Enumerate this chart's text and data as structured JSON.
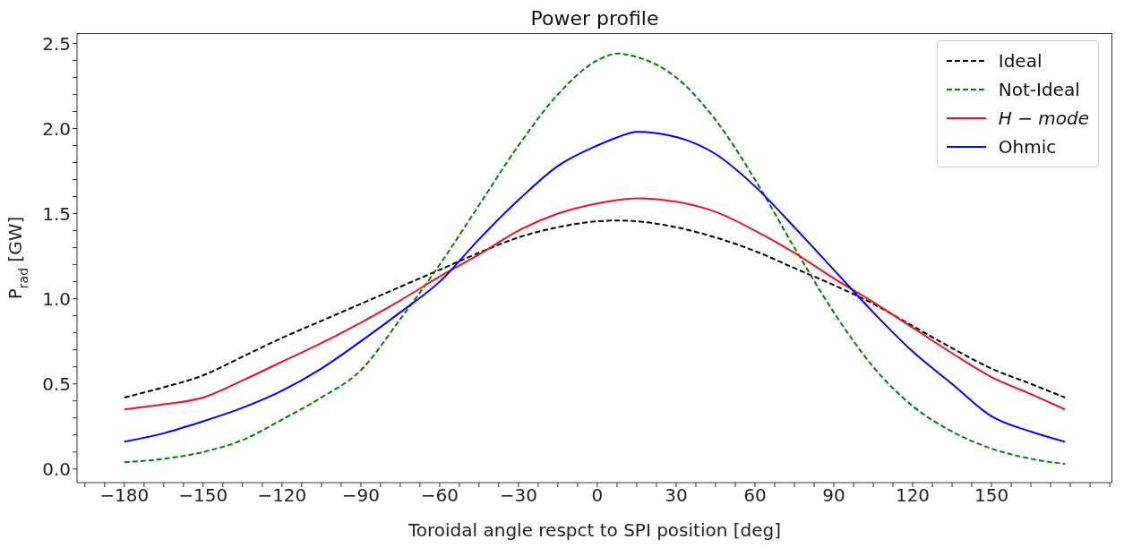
{
  "chart_data": {
    "type": "line",
    "title": "Power profile",
    "xlabel": "Toroidal angle respct to SPI position [deg]",
    "ylabel": "P$_{rad}$ [GW]",
    "x": [
      -180,
      -165,
      -150,
      -135,
      -120,
      -105,
      -90,
      -75,
      -60,
      -45,
      -30,
      -15,
      0,
      8,
      15,
      30,
      45,
      60,
      75,
      90,
      105,
      120,
      135,
      150,
      165,
      178
    ],
    "series": [
      {
        "name": "Ideal",
        "color": "#000000",
        "line_style": "dashed",
        "values": [
          0.42,
          0.48,
          0.55,
          0.66,
          0.77,
          0.87,
          0.97,
          1.07,
          1.17,
          1.27,
          1.36,
          1.42,
          1.455,
          1.46,
          1.455,
          1.42,
          1.36,
          1.28,
          1.18,
          1.08,
          0.97,
          0.84,
          0.71,
          0.59,
          0.5,
          0.42
        ]
      },
      {
        "name": "Not-Ideal",
        "color": "#008000",
        "line_style": "dashed",
        "values": [
          0.04,
          0.06,
          0.1,
          0.17,
          0.29,
          0.42,
          0.58,
          0.88,
          1.2,
          1.55,
          1.9,
          2.2,
          2.4,
          2.44,
          2.42,
          2.3,
          2.05,
          1.7,
          1.3,
          0.92,
          0.6,
          0.37,
          0.22,
          0.12,
          0.06,
          0.03
        ]
      },
      {
        "name": "H − mode",
        "color": "#e8141e",
        "line_style": "solid",
        "values": [
          0.35,
          0.38,
          0.42,
          0.52,
          0.63,
          0.74,
          0.86,
          0.99,
          1.13,
          1.26,
          1.4,
          1.5,
          1.56,
          1.58,
          1.59,
          1.57,
          1.51,
          1.4,
          1.27,
          1.12,
          0.98,
          0.83,
          0.68,
          0.54,
          0.44,
          0.35
        ]
      },
      {
        "name": "Ohmic",
        "color": "#0000ff",
        "line_style": "solid",
        "values": [
          0.16,
          0.21,
          0.28,
          0.36,
          0.46,
          0.59,
          0.75,
          0.92,
          1.1,
          1.35,
          1.58,
          1.78,
          1.9,
          1.95,
          1.98,
          1.95,
          1.85,
          1.66,
          1.42,
          1.17,
          0.92,
          0.69,
          0.5,
          0.31,
          0.22,
          0.16
        ]
      }
    ],
    "xlim": [
      -198,
      196
    ],
    "xticks": [
      {
        "value": -195,
        "label": null
      },
      {
        "value": -187.5,
        "label": null
      },
      -180,
      {
        "value": -172.5,
        "label": null
      },
      {
        "value": -165,
        "label": null
      },
      {
        "value": -157.5,
        "label": null
      },
      -150,
      {
        "value": -142.5,
        "label": null
      },
      {
        "value": -135,
        "label": null
      },
      {
        "value": -127.5,
        "label": null
      },
      -120,
      {
        "value": -112.5,
        "label": null
      },
      {
        "value": -105,
        "label": null
      },
      {
        "value": -97.5,
        "label": null
      },
      -90,
      {
        "value": -82.5,
        "label": null
      },
      {
        "value": -75,
        "label": null
      },
      {
        "value": -67.5,
        "label": null
      },
      -60,
      {
        "value": -52.5,
        "label": null
      },
      {
        "value": -45,
        "label": null
      },
      {
        "value": -37.5,
        "label": null
      },
      -30,
      {
        "value": -22.5,
        "label": null
      },
      {
        "value": -15,
        "label": null
      },
      {
        "value": -7.5,
        "label": null
      },
      0,
      {
        "value": 7.5,
        "label": null
      },
      {
        "value": 15,
        "label": null
      },
      {
        "value": 22.5,
        "label": null
      },
      30,
      {
        "value": 37.5,
        "label": null
      },
      {
        "value": 45,
        "label": null
      },
      {
        "value": 52.5,
        "label": null
      },
      60,
      {
        "value": 67.5,
        "label": null
      },
      {
        "value": 75,
        "label": null
      },
      {
        "value": 82.5,
        "label": null
      },
      90,
      {
        "value": 97.5,
        "label": null
      },
      {
        "value": 105,
        "label": null
      },
      {
        "value": 112.5,
        "label": null
      },
      120,
      {
        "value": 127.5,
        "label": null
      },
      {
        "value": 135,
        "label": null
      },
      {
        "value": 142.5,
        "label": null
      },
      150,
      {
        "value": 157.5,
        "label": null
      },
      {
        "value": 165,
        "label": null
      },
      {
        "value": 172.5,
        "label": null
      },
      {
        "value": 180,
        "label": null
      },
      {
        "value": 187.5,
        "label": null
      },
      {
        "value": 195,
        "label": null
      }
    ],
    "ylim": [
      -0.08,
      2.56
    ],
    "yticks": [
      {
        "value": 0,
        "label": "0.0"
      },
      {
        "value": 0.1,
        "label": null
      },
      {
        "value": 0.2,
        "label": null
      },
      {
        "value": 0.3,
        "label": null
      },
      {
        "value": 0.4,
        "label": null
      },
      {
        "value": 0.5,
        "label": "0.5"
      },
      {
        "value": 0.6,
        "label": null
      },
      {
        "value": 0.7,
        "label": null
      },
      {
        "value": 0.8,
        "label": null
      },
      {
        "value": 0.9,
        "label": null
      },
      {
        "value": 1,
        "label": "1.0"
      },
      {
        "value": 1.1,
        "label": null
      },
      {
        "value": 1.2,
        "label": null
      },
      {
        "value": 1.3,
        "label": null
      },
      {
        "value": 1.4,
        "label": null
      },
      {
        "value": 1.5,
        "label": "1.5"
      },
      {
        "value": 1.6,
        "label": null
      },
      {
        "value": 1.7,
        "label": null
      },
      {
        "value": 1.8,
        "label": null
      },
      {
        "value": 1.9,
        "label": null
      },
      {
        "value": 2,
        "label": "2.0"
      },
      {
        "value": 2.1,
        "label": null
      },
      {
        "value": 2.2,
        "label": null
      },
      {
        "value": 2.3,
        "label": null
      },
      {
        "value": 2.4,
        "label": null
      },
      {
        "value": 2.5,
        "label": "2.5"
      }
    ],
    "grid": false,
    "legend": "top right",
    "marker": "none"
  }
}
